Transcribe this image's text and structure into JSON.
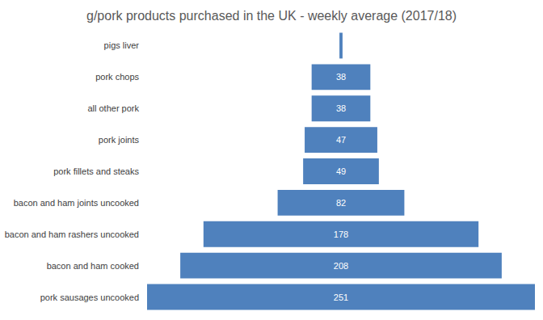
{
  "chart_data": {
    "type": "bar",
    "orientation": "horizontal",
    "title": "g/pork products purchased in the UK - weekly average (2017/18)",
    "categories": [
      "pigs liver",
      "pork chops",
      "all other pork",
      "pork joints",
      "pork fillets and steaks",
      "bacon and ham joints uncooked",
      "bacon and ham rashers uncooked",
      "bacon and ham cooked",
      "pork sausages uncooked"
    ],
    "values": [
      2,
      38,
      38,
      47,
      49,
      82,
      178,
      208,
      251
    ],
    "value_labels": [
      null,
      "38",
      "38",
      "47",
      "49",
      "82",
      "178",
      "208",
      "251"
    ],
    "color": "#4f81bd",
    "data_labels": true,
    "tick_labels": "y",
    "grid": false
  }
}
